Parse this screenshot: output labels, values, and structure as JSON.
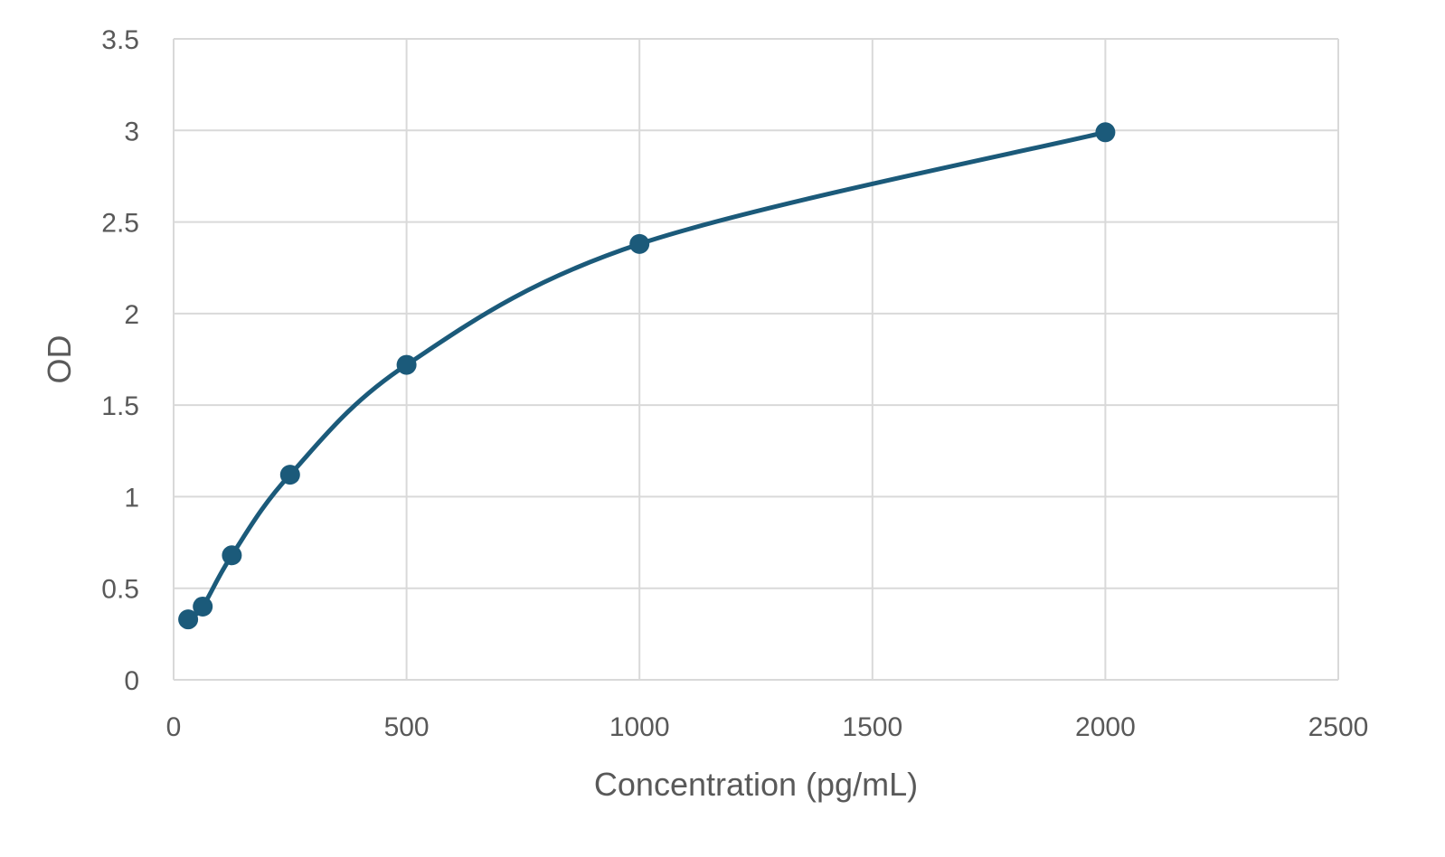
{
  "chart_data": {
    "type": "scatter",
    "title": "",
    "xlabel": "Concentration (pg/mL)",
    "ylabel": "OD",
    "xlim": [
      0,
      2500
    ],
    "ylim": [
      0,
      3.5
    ],
    "x_ticks": [
      "0",
      "500",
      "1000",
      "1500",
      "2000",
      "2500"
    ],
    "y_ticks": [
      "0",
      "0.5",
      "1",
      "1.5",
      "2",
      "2.5",
      "3",
      "3.5"
    ],
    "x_tick_values": [
      0,
      500,
      1000,
      1500,
      2000,
      2500
    ],
    "y_tick_values": [
      0,
      0.5,
      1,
      1.5,
      2,
      2.5,
      3,
      3.5
    ],
    "grid": true,
    "smooth_line": true,
    "legend": "none",
    "series": [
      {
        "color": "#1b5a7a",
        "points": [
          {
            "x": 31.25,
            "y": 0.33
          },
          {
            "x": 62.5,
            "y": 0.4
          },
          {
            "x": 125,
            "y": 0.68
          },
          {
            "x": 250,
            "y": 1.12
          },
          {
            "x": 500,
            "y": 1.72
          },
          {
            "x": 1000,
            "y": 2.38
          },
          {
            "x": 2000,
            "y": 2.99
          }
        ]
      }
    ]
  }
}
